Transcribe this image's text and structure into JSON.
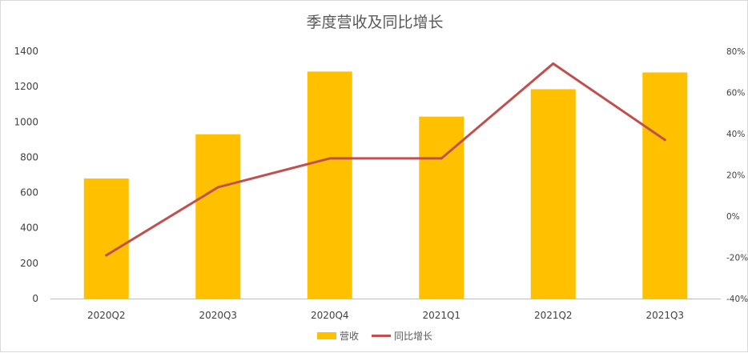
{
  "colors": {
    "bars": "#ffc000",
    "line": "#c0504d",
    "grid": "#d9d9d9",
    "axis": "#bfbfbf"
  },
  "chart_data": {
    "type": "bar",
    "title": "季度营收及同比增长",
    "categories": [
      "2020Q2",
      "2020Q3",
      "2020Q4",
      "2021Q1",
      "2021Q2",
      "2021Q3"
    ],
    "series": [
      {
        "name": "营收",
        "type": "bar",
        "axis": "left",
        "values": [
          680,
          930,
          1285,
          1030,
          1185,
          1280
        ]
      },
      {
        "name": "同比增长",
        "type": "line",
        "axis": "right",
        "values": [
          -19,
          14,
          28,
          28,
          74,
          37
        ]
      }
    ],
    "y_left": {
      "ylim": [
        0,
        1400
      ],
      "ticks": [
        0,
        200,
        400,
        600,
        800,
        1000,
        1200,
        1400
      ]
    },
    "y_right": {
      "ylim": [
        -40,
        80
      ],
      "ticks": [
        -40,
        -20,
        0,
        20,
        40,
        60,
        80
      ],
      "tick_labels": [
        "-40%",
        "-20%",
        "0%",
        "20%",
        "40%",
        "60%",
        "80%"
      ]
    },
    "grid": false,
    "legend": "bottom-center"
  }
}
